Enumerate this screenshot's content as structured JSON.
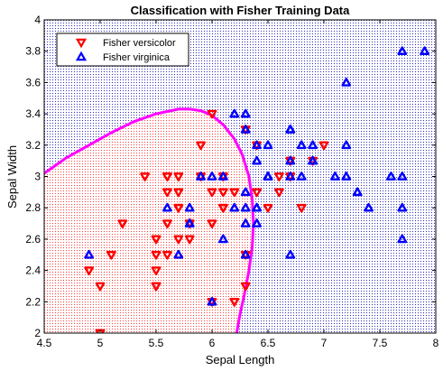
{
  "chart_data": {
    "type": "scatter",
    "title": "Classification with Fisher Training Data",
    "xlabel": "Sepal Length",
    "ylabel": "Sepal Width",
    "xlim": [
      4.5,
      8
    ],
    "ylim": [
      2,
      4
    ],
    "xticks": [
      "4.5",
      "5",
      "5.5",
      "6",
      "6.5",
      "7",
      "7.5",
      "8"
    ],
    "yticks": [
      "2",
      "2.2",
      "2.4",
      "2.6",
      "2.8",
      "3",
      "3.2",
      "3.4",
      "3.6",
      "3.8",
      "4"
    ],
    "legend_position": "top-left",
    "background_regions": [
      {
        "name": "versicolor region",
        "color": "#ff4040"
      },
      {
        "name": "virginica region",
        "color": "#3030c0"
      }
    ],
    "boundary": {
      "color": "#ff00ff",
      "points": [
        [
          4.5,
          3.02
        ],
        [
          4.7,
          3.12
        ],
        [
          4.9,
          3.2
        ],
        [
          5.1,
          3.28
        ],
        [
          5.3,
          3.35
        ],
        [
          5.5,
          3.4
        ],
        [
          5.7,
          3.43
        ],
        [
          5.8,
          3.43
        ],
        [
          5.9,
          3.42
        ],
        [
          6.0,
          3.39
        ],
        [
          6.1,
          3.33
        ],
        [
          6.2,
          3.24
        ],
        [
          6.27,
          3.14
        ],
        [
          6.33,
          3.0
        ],
        [
          6.36,
          2.85
        ],
        [
          6.37,
          2.7
        ],
        [
          6.36,
          2.55
        ],
        [
          6.33,
          2.4
        ],
        [
          6.29,
          2.25
        ],
        [
          6.25,
          2.12
        ],
        [
          6.22,
          2.0
        ]
      ]
    },
    "series": [
      {
        "name": "Fisher versicolor",
        "marker": "triangle-down",
        "color": "#ff0000",
        "points": [
          [
            7.0,
            3.2
          ],
          [
            6.4,
            3.2
          ],
          [
            6.9,
            3.1
          ],
          [
            5.5,
            2.3
          ],
          [
            6.5,
            2.8
          ],
          [
            5.7,
            2.8
          ],
          [
            6.3,
            3.3
          ],
          [
            4.9,
            2.4
          ],
          [
            6.6,
            2.9
          ],
          [
            5.2,
            2.7
          ],
          [
            5.0,
            2.0
          ],
          [
            5.9,
            3.0
          ],
          [
            6.0,
            2.2
          ],
          [
            6.1,
            2.9
          ],
          [
            5.6,
            2.9
          ],
          [
            6.7,
            3.1
          ],
          [
            5.6,
            3.0
          ],
          [
            5.8,
            2.7
          ],
          [
            6.2,
            2.2
          ],
          [
            5.6,
            2.5
          ],
          [
            5.9,
            3.2
          ],
          [
            6.1,
            2.8
          ],
          [
            6.3,
            2.5
          ],
          [
            6.1,
            2.8
          ],
          [
            6.4,
            2.9
          ],
          [
            6.6,
            3.0
          ],
          [
            6.8,
            2.8
          ],
          [
            6.7,
            3.0
          ],
          [
            6.0,
            2.9
          ],
          [
            5.7,
            2.6
          ],
          [
            5.5,
            2.4
          ],
          [
            5.8,
            2.7
          ],
          [
            6.0,
            2.7
          ],
          [
            5.4,
            3.0
          ],
          [
            6.0,
            3.4
          ],
          [
            6.7,
            3.1
          ],
          [
            6.3,
            2.3
          ],
          [
            5.6,
            3.0
          ],
          [
            5.5,
            2.5
          ],
          [
            5.5,
            2.6
          ],
          [
            6.1,
            3.0
          ],
          [
            5.8,
            2.6
          ],
          [
            5.0,
            2.3
          ],
          [
            5.6,
            2.7
          ],
          [
            5.7,
            3.0
          ],
          [
            5.7,
            2.9
          ],
          [
            6.2,
            2.9
          ],
          [
            5.1,
            2.5
          ],
          [
            5.7,
            2.8
          ],
          [
            5.5,
            2.3
          ]
        ]
      },
      {
        "name": "Fisher virginica",
        "marker": "triangle-up",
        "color": "#0000ff",
        "points": [
          [
            6.3,
            3.3
          ],
          [
            5.8,
            2.7
          ],
          [
            7.1,
            3.0
          ],
          [
            6.3,
            2.9
          ],
          [
            6.5,
            3.0
          ],
          [
            7.6,
            3.0
          ],
          [
            4.9,
            2.5
          ],
          [
            7.3,
            2.9
          ],
          [
            6.7,
            2.5
          ],
          [
            7.2,
            3.6
          ],
          [
            6.5,
            3.2
          ],
          [
            6.4,
            2.7
          ],
          [
            6.8,
            3.0
          ],
          [
            5.7,
            2.5
          ],
          [
            5.8,
            2.8
          ],
          [
            6.4,
            3.2
          ],
          [
            6.5,
            3.0
          ],
          [
            7.7,
            3.8
          ],
          [
            7.7,
            2.6
          ],
          [
            6.0,
            2.2
          ],
          [
            6.9,
            3.2
          ],
          [
            5.6,
            2.8
          ],
          [
            7.7,
            2.8
          ],
          [
            6.3,
            2.7
          ],
          [
            6.7,
            3.3
          ],
          [
            7.2,
            3.2
          ],
          [
            6.2,
            2.8
          ],
          [
            6.1,
            3.0
          ],
          [
            6.4,
            2.8
          ],
          [
            7.2,
            3.0
          ],
          [
            7.4,
            2.8
          ],
          [
            7.9,
            3.8
          ],
          [
            6.4,
            2.8
          ],
          [
            6.3,
            2.8
          ],
          [
            6.1,
            2.6
          ],
          [
            7.7,
            3.0
          ],
          [
            6.3,
            3.4
          ],
          [
            6.4,
            3.1
          ],
          [
            6.0,
            3.0
          ],
          [
            6.9,
            3.1
          ],
          [
            6.7,
            3.1
          ],
          [
            6.9,
            3.1
          ],
          [
            5.8,
            2.7
          ],
          [
            6.8,
            3.2
          ],
          [
            6.7,
            3.3
          ],
          [
            6.7,
            3.0
          ],
          [
            6.3,
            2.5
          ],
          [
            6.5,
            3.0
          ],
          [
            6.2,
            3.4
          ],
          [
            5.9,
            3.0
          ]
        ]
      }
    ]
  }
}
